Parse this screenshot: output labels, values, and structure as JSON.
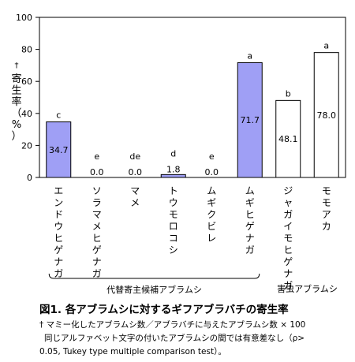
{
  "chart_data": {
    "type": "bar",
    "ylabel": "寄生率（%）",
    "ylabel_mark": "†",
    "ylim": [
      0,
      100
    ],
    "yticks": [
      0,
      20,
      40,
      60,
      80,
      100
    ],
    "grid": false,
    "categories": [
      "エンドウヒゲナガ",
      "ソラマメヒゲナガ",
      "マメ",
      "トウモロコシ",
      "ムギクビレ",
      "ムギヒゲナガ",
      "ジャガイモヒゲナガ",
      "モモアカ"
    ],
    "values": [
      34.7,
      0.0,
      0.0,
      1.8,
      0.0,
      71.7,
      48.1,
      78.0
    ],
    "value_labels": [
      "34.7",
      "0.0",
      "0.0",
      "1.8",
      "0.0",
      "71.7",
      "48.1",
      "78.0"
    ],
    "letters": [
      "c",
      "e",
      "de",
      "d",
      "e",
      "a",
      "b",
      "a"
    ],
    "bar_colors": [
      "#9f9ff5",
      "#9f9ff5",
      "#9f9ff5",
      "#9f9ff5",
      "#9f9ff5",
      "#9f9ff5",
      "#ffffff",
      "#ffffff"
    ],
    "groups": [
      {
        "label": "代替寄主候補アブラムシ",
        "from": 0,
        "to": 5
      },
      {
        "label": "害虫アブラムシ",
        "from": 6,
        "to": 7
      }
    ]
  },
  "caption": {
    "title": "図1. 各アブラムシに対するギフアブラバチの寄生率",
    "note_line1": "† マミー化したアブラムシ数／アブラバチに与えたアブラムシ数 × 100",
    "note_line2": "同じアルファベット文字の付いたアブラムシの間では有意差なし（ρ>",
    "note_line3": "0.05, Tukey type multiple comparison test）。"
  }
}
